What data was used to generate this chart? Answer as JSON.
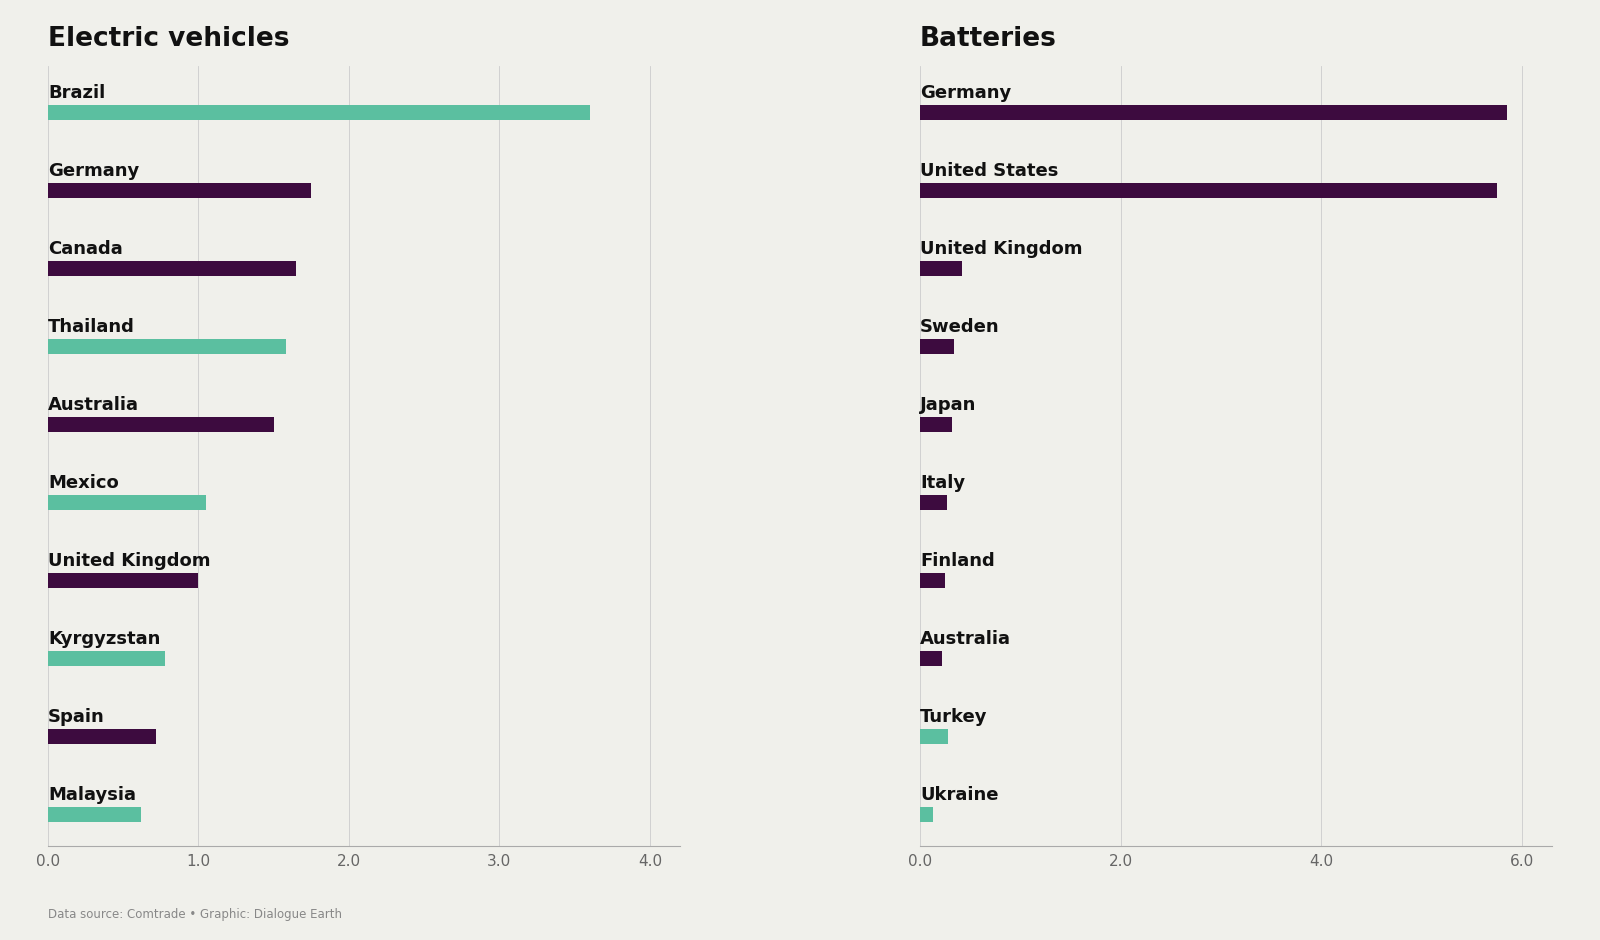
{
  "ev_countries": [
    "Brazil",
    "Germany",
    "Canada",
    "Thailand",
    "Australia",
    "Mexico",
    "United Kingdom",
    "Kyrgyzstan",
    "Spain",
    "Malaysia"
  ],
  "ev_values": [
    3.6,
    1.75,
    1.65,
    1.58,
    1.5,
    1.05,
    1.0,
    0.78,
    0.72,
    0.62
  ],
  "ev_colors": [
    "#5bbfa0",
    "#3d0b3f",
    "#3d0b3f",
    "#5bbfa0",
    "#3d0b3f",
    "#5bbfa0",
    "#3d0b3f",
    "#5bbfa0",
    "#3d0b3f",
    "#5bbfa0"
  ],
  "bat_countries": [
    "Germany",
    "United States",
    "United Kingdom",
    "Sweden",
    "Japan",
    "Italy",
    "Finland",
    "Australia",
    "Turkey",
    "Ukraine"
  ],
  "bat_values": [
    5.85,
    5.75,
    0.42,
    0.34,
    0.32,
    0.27,
    0.25,
    0.22,
    0.28,
    0.13
  ],
  "bat_colors": [
    "#3d0b3f",
    "#3d0b3f",
    "#3d0b3f",
    "#3d0b3f",
    "#3d0b3f",
    "#3d0b3f",
    "#3d0b3f",
    "#3d0b3f",
    "#5bbfa0",
    "#5bbfa0"
  ],
  "ev_title": "Electric vehicles",
  "bat_title": "Batteries",
  "ev_xlim": [
    0,
    4.2
  ],
  "bat_xlim": [
    0,
    6.3
  ],
  "ev_xticks": [
    0.0,
    1.0,
    2.0,
    3.0,
    4.0
  ],
  "bat_xticks": [
    0.0,
    2.0,
    4.0,
    6.0
  ],
  "background_color": "#f0f0eb",
  "bar_height": 0.38,
  "title_fontsize": 19,
  "label_fontsize": 13,
  "tick_fontsize": 11,
  "footnote": "Data source: Comtrade • Graphic: Dialogue Earth"
}
